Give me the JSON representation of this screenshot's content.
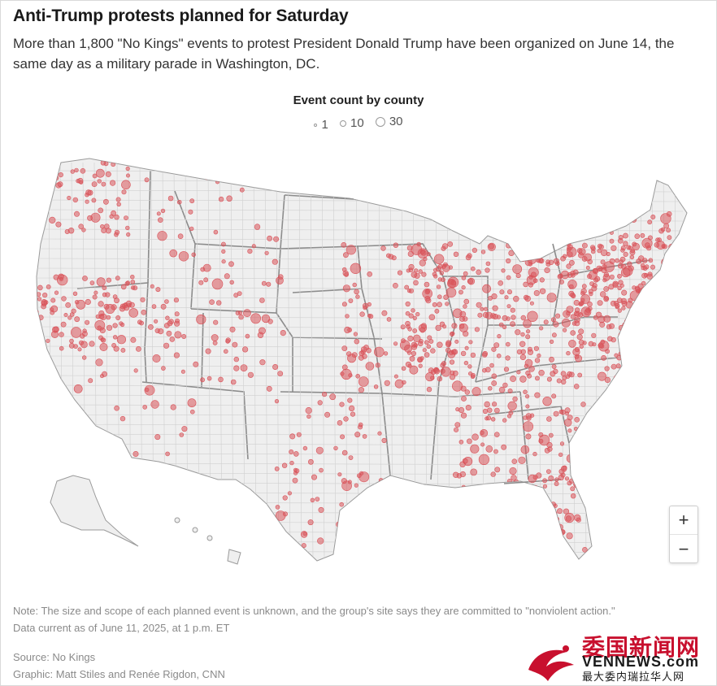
{
  "header": {
    "title": "Anti-Trump protests planned for Saturday",
    "subtitle": "More than 1,800 \"No Kings\" events to protest President Donald Trump have been organized on June 14, the same day as a military parade in Washington, DC."
  },
  "legend": {
    "title": "Event count by county",
    "items": [
      {
        "label": "1",
        "size": 1
      },
      {
        "label": "10",
        "size": 10
      },
      {
        "label": "30",
        "size": 30
      }
    ]
  },
  "map": {
    "region": "United States (counties)",
    "marker_color": "#d9535a",
    "land_color": "#efefef",
    "border_color": "#8a8a8a"
  },
  "zoom": {
    "in_label": "+",
    "out_label": "−"
  },
  "footer": {
    "note": "Note: The size and scope of each planned event is unknown, and the group's site says they are committed to \"nonviolent action.\"",
    "data_current": "Data current as of June 11, 2025, at 1 p.m. ET",
    "source": "Source: No Kings",
    "graphic": "Graphic: Matt Stiles and Renée Rigdon, CNN"
  },
  "watermark": {
    "cn_title": "委国新闻网",
    "en_title": "VENNEWS.com",
    "cn_sub": "最大委内瑞拉华人网"
  }
}
